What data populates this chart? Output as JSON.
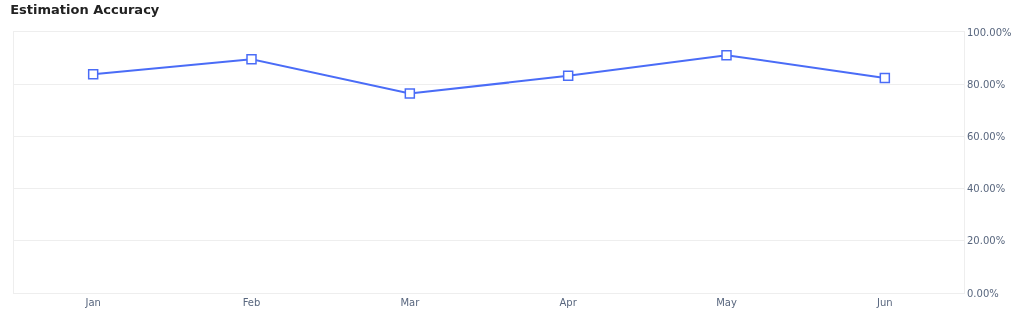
{
  "chart_data": {
    "type": "line",
    "title": "Estimation Accuracy",
    "categories": [
      "Jan",
      "Feb",
      "Mar",
      "Apr",
      "May",
      "Jun"
    ],
    "series": [
      {
        "color": "#4a6cf7",
        "values": [
          83.8,
          89.6,
          76.4,
          83.2,
          91.1,
          82.4
        ]
      }
    ],
    "ylim": [
      0,
      100
    ],
    "yticks": [
      {
        "value": 0,
        "label": "0.00%"
      },
      {
        "value": 20,
        "label": "20.00%"
      },
      {
        "value": 40,
        "label": "40.00%"
      },
      {
        "value": 60,
        "label": "60.00%"
      },
      {
        "value": 80,
        "label": "80.00%"
      },
      {
        "value": 100,
        "label": "100.00%"
      }
    ],
    "grid": "y",
    "marker": "square",
    "line_style": "solid",
    "legend": false
  }
}
